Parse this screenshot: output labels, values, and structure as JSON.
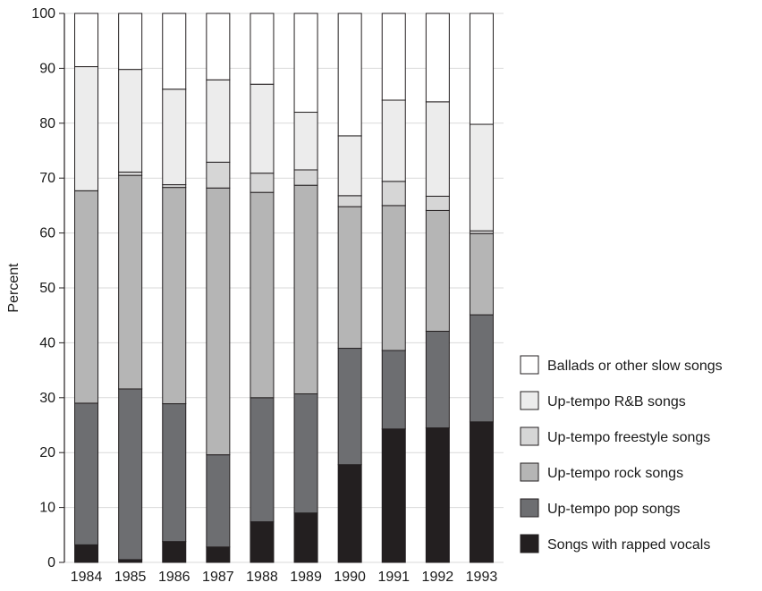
{
  "chart_data": {
    "type": "bar",
    "stacked": true,
    "ylabel": "Percent",
    "xlabel": "",
    "ylim": [
      0,
      100
    ],
    "yticks": [
      "0",
      "10",
      "20",
      "30",
      "40",
      "50",
      "60",
      "70",
      "80",
      "90",
      "100"
    ],
    "grid": true,
    "legend_position": "right-bottom",
    "categories": [
      "1984",
      "1985",
      "1986",
      "1987",
      "1988",
      "1989",
      "1990",
      "1991",
      "1992",
      "1993"
    ],
    "series": [
      {
        "name": "Songs with rapped vocals",
        "color": "#231f20",
        "values": [
          3.2,
          0.5,
          3.8,
          2.8,
          7.4,
          9.0,
          17.8,
          24.3,
          24.5,
          25.6
        ]
      },
      {
        "name": "Up-tempo pop songs",
        "color": "#6d6e71",
        "values": [
          25.8,
          31.1,
          25.1,
          16.8,
          22.6,
          21.7,
          21.2,
          14.3,
          17.6,
          19.5
        ]
      },
      {
        "name": "Up-tempo rock songs",
        "color": "#b5b5b5",
        "values": [
          38.7,
          38.9,
          39.4,
          48.6,
          37.4,
          38.0,
          25.8,
          26.4,
          22.0,
          14.8
        ]
      },
      {
        "name": "Up-tempo freestyle songs",
        "color": "#d6d6d6",
        "values": [
          0.0,
          0.6,
          0.5,
          4.7,
          3.5,
          2.8,
          2.0,
          4.4,
          2.6,
          0.5
        ]
      },
      {
        "name": "Up-tempo R&B songs",
        "color": "#ececec",
        "values": [
          22.6,
          18.7,
          17.4,
          15.0,
          16.2,
          10.5,
          10.9,
          14.8,
          17.2,
          19.4
        ]
      },
      {
        "name": "Ballads or other slow songs",
        "color": "#ffffff",
        "values": [
          9.7,
          10.2,
          13.8,
          12.1,
          12.9,
          18.0,
          22.3,
          15.8,
          16.1,
          20.2
        ]
      }
    ]
  }
}
